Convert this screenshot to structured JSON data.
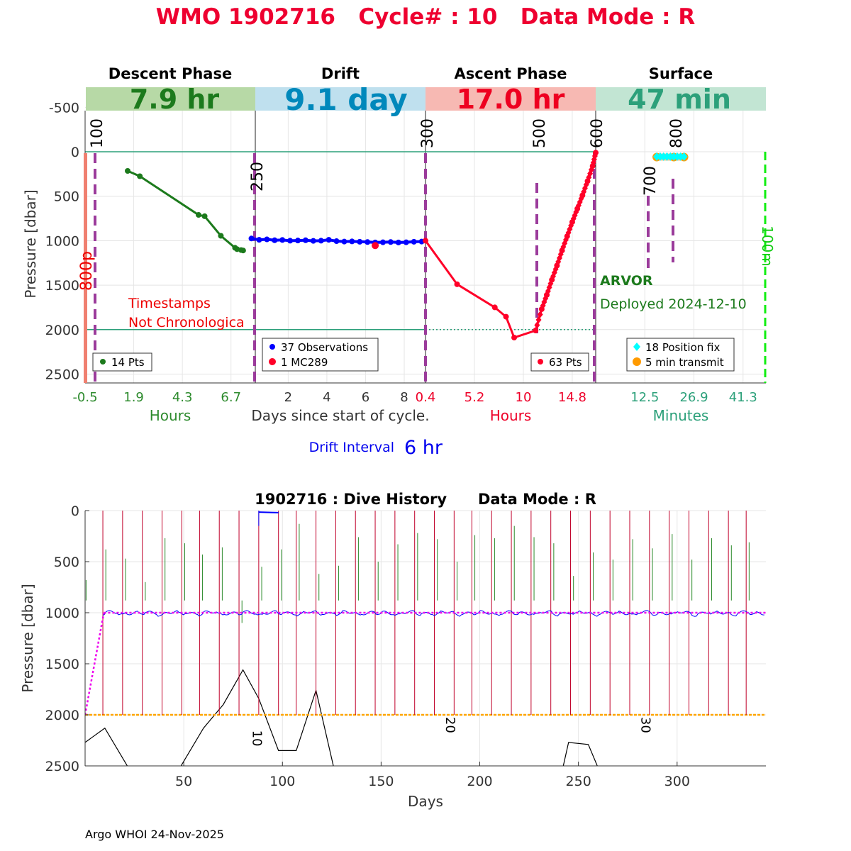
{
  "page": {
    "title": "WMO 1902716   Cycle# : 10   Data Mode : R",
    "footer": "Argo WHOI 24-Nov-2025"
  },
  "colors": {
    "descent": "#1c7a1c",
    "drift": "#0000ff",
    "ascent": "#ff0028",
    "surface": "#2ca07a",
    "title": "#ee0030",
    "marker": "#9b3b9b",
    "gps": "#00ffff",
    "transmit": "#ff9a00",
    "axis_green": "#2e8b2e",
    "dive_red": "#c0002a",
    "dive_green": "#2a8a2a",
    "magenta": "#ee00ee",
    "orange_line": "#ffa500",
    "bright_green": "#11ee11"
  },
  "chart_data": [
    {
      "id": "cycle",
      "type": "line",
      "ylabel": "Pressure [dbar]",
      "ylim": [
        2600,
        -750
      ],
      "yticks": [
        -500,
        0,
        500,
        1000,
        1500,
        2000,
        2500
      ],
      "xlabel_center": "Days since start of cycle.",
      "drift_interval_label": "Drift Interval",
      "drift_interval_value": "6 hr",
      "grid": true,
      "phases": [
        {
          "name": "Descent Phase",
          "duration": "7.9 hr",
          "unit_label": "Hours",
          "ticks": [
            "-0.5",
            "1.9",
            "4.3",
            "6.7"
          ],
          "legend": "14 Pts"
        },
        {
          "name": "Drift",
          "duration": "9.1 day",
          "unit_label": "",
          "ticks": [
            "2",
            "4",
            "6",
            "8"
          ],
          "legend": "37 Observations",
          "legend2": "1 MC289"
        },
        {
          "name": "Ascent Phase",
          "duration": "17.0 hr",
          "unit_label": "Hours",
          "ticks": [
            "0.4",
            "5.2",
            "10",
            "14.8"
          ],
          "legend": "63 Pts"
        },
        {
          "name": "Surface",
          "duration": "47 min",
          "unit_label": "Minutes",
          "ticks": [
            "12.5",
            "26.9",
            "41.3"
          ],
          "legend": "18 Position fix",
          "legend2": "5 min transmit"
        }
      ],
      "marker_labels": [
        "100",
        "250",
        "300",
        "500",
        "600",
        "700",
        "800",
        "800p",
        "100m"
      ],
      "annotations": {
        "timestamps_line1": "Timestamps",
        "timestamps_line2": "Not Chronologica",
        "float_type": "ARVOR",
        "deployed": "Deployed 2024-12-10"
      },
      "descent_series": {
        "x_hours": [
          1.6,
          2.2,
          5.1,
          5.4,
          6.2,
          6.9,
          7.0,
          7.2,
          7.3
        ],
        "pressure": [
          215,
          275,
          710,
          725,
          945,
          1080,
          1095,
          1105,
          1110
        ]
      },
      "drift_series": {
        "x_days": [
          0.1,
          0.5,
          0.9,
          1.3,
          1.7,
          2.1,
          2.5,
          2.9,
          3.3,
          3.7,
          4.1,
          4.5,
          4.9,
          5.3,
          5.7,
          6.1,
          6.5,
          6.9,
          7.3,
          7.7,
          8.1,
          8.5,
          8.9
        ],
        "pressure": [
          975,
          990,
          985,
          995,
          992,
          1000,
          998,
          995,
          1002,
          1000,
          990,
          1005,
          1010,
          1008,
          1012,
          1015,
          1020,
          1018,
          1015,
          1020,
          1018,
          1012,
          1010
        ],
        "mc289_day": 6.5,
        "mc289_pressure": 1055
      },
      "ascent_series": {
        "x_hours": [
          0.4,
          3.5,
          7.2,
          8.3,
          9.1,
          11.2,
          11.8,
          12.3,
          12.8,
          13.3,
          13.8,
          14.3,
          14.8,
          15.3,
          15.8,
          16.3,
          16.8,
          17.1
        ],
        "pressure": [
          1000,
          1490,
          1750,
          1855,
          2090,
          2010,
          1770,
          1610,
          1440,
          1280,
          1110,
          950,
          790,
          640,
          490,
          330,
          160,
          10
        ]
      },
      "surface_series": {
        "gps_minutes": [
          16,
          17,
          18,
          19,
          20,
          21,
          22,
          23,
          24
        ],
        "gps_pressure": 55,
        "transmit_minutes": [
          16,
          21,
          24
        ],
        "transmit_pressure": 60
      }
    },
    {
      "id": "dive",
      "type": "line",
      "title": "1902716 : Dive History      Data Mode : R",
      "xlabel": "Days",
      "ylabel": "Pressure [dbar]",
      "xlim": [
        0,
        345
      ],
      "ylim": [
        2500,
        0
      ],
      "xticks": [
        50,
        100,
        150,
        200,
        250,
        300
      ],
      "yticks": [
        0,
        500,
        1000,
        1500,
        2000,
        2500
      ],
      "grid": true,
      "cycle_labels": [
        {
          "text": "10",
          "day": 85,
          "pressure": 2150
        },
        {
          "text": "20",
          "day": 183,
          "pressure": 2020
        },
        {
          "text": "30",
          "day": 282,
          "pressure": 2020
        }
      ],
      "profile_days": [
        9,
        19,
        29,
        39,
        49,
        58,
        68,
        78,
        88,
        98,
        107,
        117,
        127,
        137,
        147,
        157,
        167,
        177,
        187,
        196,
        206,
        216,
        226,
        236,
        246,
        256,
        266,
        276,
        286,
        296,
        306,
        316,
        326,
        335
      ],
      "profile_depth": 2000,
      "descent_day_offsets": [
        0,
        10,
        20,
        30,
        40,
        50,
        59,
        69,
        79,
        89,
        99,
        108,
        118,
        128,
        138,
        148,
        158,
        168,
        178,
        188,
        197,
        207,
        217,
        227,
        237,
        247,
        257,
        267,
        277,
        287,
        297,
        307,
        317,
        327,
        336
      ],
      "descent_depths": [
        680,
        380,
        470,
        700,
        270,
        320,
        430,
        360,
        1100,
        550,
        380,
        130,
        620,
        540,
        260,
        500,
        330,
        220,
        280,
        500,
        240,
        270,
        150,
        260,
        320,
        640,
        410,
        480,
        280,
        370,
        230,
        480,
        270,
        340,
        310
      ],
      "first_descent": {
        "days": [
          0,
          9.5
        ],
        "pressure": [
          2000,
          1000
        ]
      },
      "magenta_level": 1000,
      "orange_level": 2000,
      "surface_segment": {
        "days": [
          88,
          98
        ],
        "pressure": [
          15,
          20
        ]
      },
      "black_line": {
        "days": [
          0,
          10,
          22,
          30,
          48,
          60,
          70,
          80,
          88,
          98,
          107,
          117,
          127,
          240,
          245,
          255,
          260,
          345
        ],
        "pressure": [
          2270,
          2130,
          2520,
          2700,
          2520,
          2130,
          1900,
          1560,
          1840,
          2350,
          2350,
          1760,
          2600,
          2700,
          2270,
          2290,
          2520,
          2700
        ]
      }
    }
  ]
}
